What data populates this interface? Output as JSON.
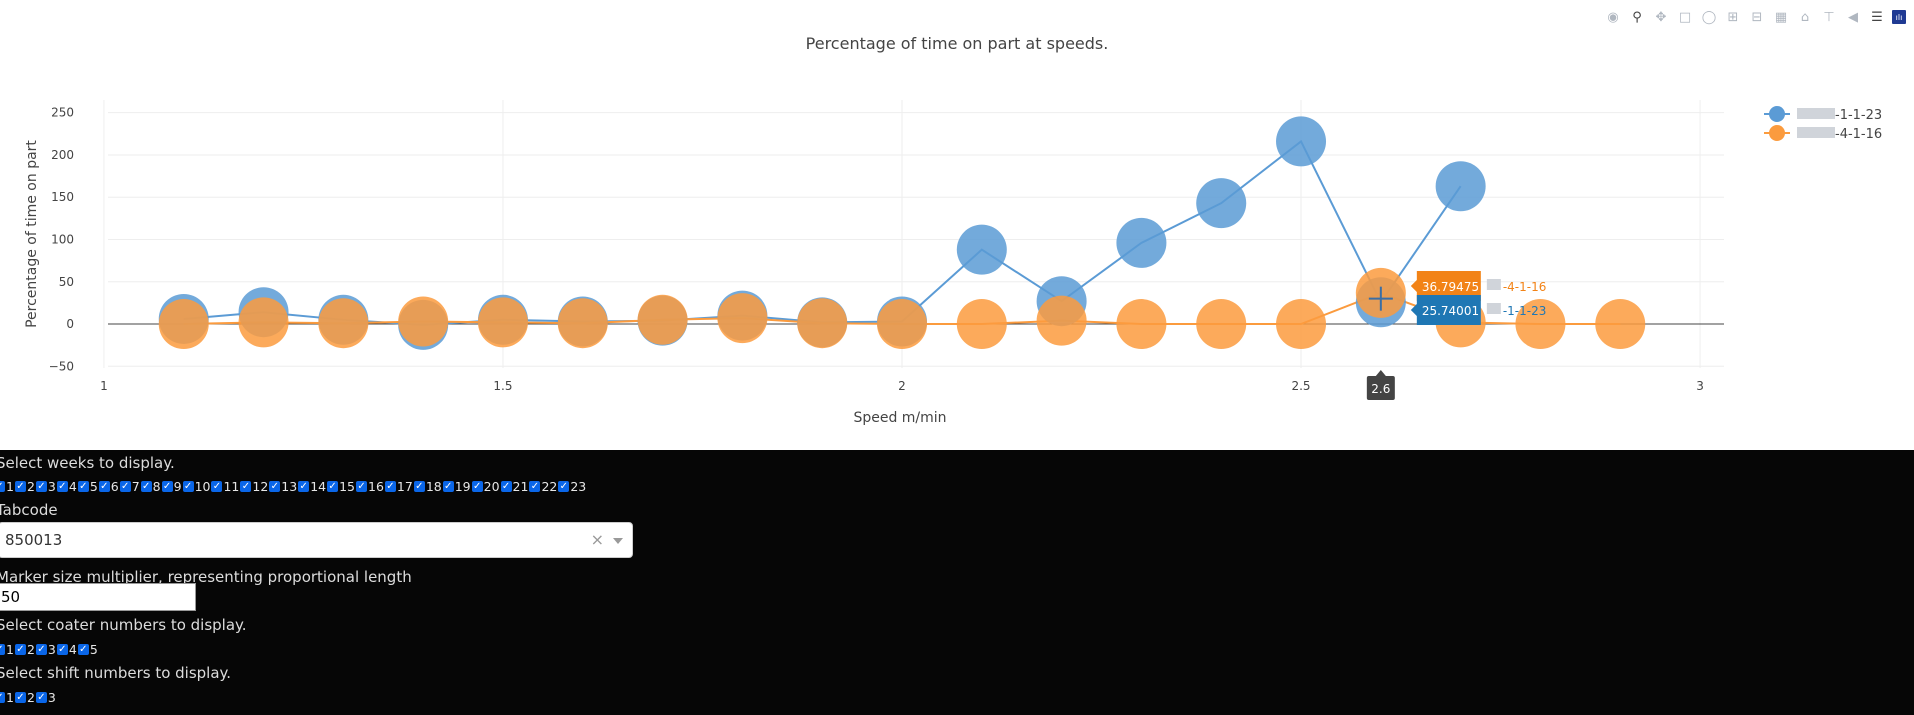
{
  "chart_data": {
    "type": "scatter",
    "title": "Percentage of time on part at speeds.",
    "xlabel": "Speed m/min",
    "ylabel": "Percentage of time on part",
    "xlim": [
      0.97,
      3.03
    ],
    "ylim": [
      -52,
      265
    ],
    "xticks": [
      1,
      1.5,
      2,
      2.5,
      3
    ],
    "xtick_labels": [
      "1",
      "1.5",
      "2",
      "2.5",
      "3"
    ],
    "yticks": [
      -50,
      0,
      50,
      100,
      150,
      200,
      250
    ],
    "ytick_labels": [
      "−50",
      "0",
      "50",
      "100",
      "150",
      "200",
      "250"
    ],
    "grid": true,
    "legend_position": "top-right",
    "series": [
      {
        "name": "-1-1-23",
        "color": "#5b9bd5",
        "x": [
          1.1,
          1.2,
          1.3,
          1.4,
          1.5,
          1.6,
          1.7,
          1.8,
          1.9,
          2.0,
          2.1,
          2.2,
          2.3,
          2.4,
          2.5,
          2.6,
          2.7
        ],
        "y": [
          6,
          14,
          5,
          -1,
          5,
          3,
          4,
          10,
          2,
          3,
          88,
          27,
          96,
          143,
          216,
          25.74,
          163
        ]
      },
      {
        "name": "-4-1-16",
        "color": "#fb9b3e",
        "x": [
          1.1,
          1.2,
          1.3,
          1.4,
          1.5,
          1.6,
          1.7,
          1.8,
          1.9,
          2.0,
          2.1,
          2.2,
          2.3,
          2.4,
          2.5,
          2.6,
          2.7,
          2.8,
          2.9
        ],
        "y": [
          0,
          2,
          1,
          3,
          2,
          1,
          5,
          7,
          1,
          0,
          0,
          4,
          0,
          0,
          0,
          36.79,
          2,
          0,
          0
        ]
      }
    ],
    "hover": {
      "x_label": "2.6",
      "items": [
        {
          "value": "36.79475",
          "name": "-4-1-16",
          "color": "#f28317"
        },
        {
          "value": "25.74001",
          "name": "-1-1-23",
          "color": "#1f77b4"
        }
      ]
    }
  },
  "controls": {
    "weeks_label": "Select weeks to display.",
    "weeks": [
      "1",
      "2",
      "3",
      "4",
      "5",
      "6",
      "7",
      "8",
      "9",
      "10",
      "11",
      "12",
      "13",
      "14",
      "15",
      "16",
      "17",
      "18",
      "19",
      "20",
      "21",
      "22",
      "23"
    ],
    "tabcode_label": "Tabcode",
    "tabcode_value": "850013",
    "clear_symbol": "×",
    "marker_label": "Marker size multiplier, representing proportional length",
    "marker_value": "50",
    "coater_label": "Select coater numbers to display.",
    "coaters": [
      "1",
      "2",
      "3",
      "4",
      "5"
    ],
    "shift_label": "Select shift numbers to display.",
    "shifts": [
      "1",
      "2",
      "3"
    ]
  },
  "modebar": {
    "icons": [
      "camera-icon",
      "zoom-icon",
      "pan-icon",
      "box-select-icon",
      "lasso-icon",
      "zoom-in-icon",
      "zoom-out-icon",
      "autoscale-icon",
      "reset-axes-icon",
      "spike-lines-icon",
      "hover-closest-icon",
      "hover-compare-icon",
      "plotly-logo-icon"
    ]
  }
}
